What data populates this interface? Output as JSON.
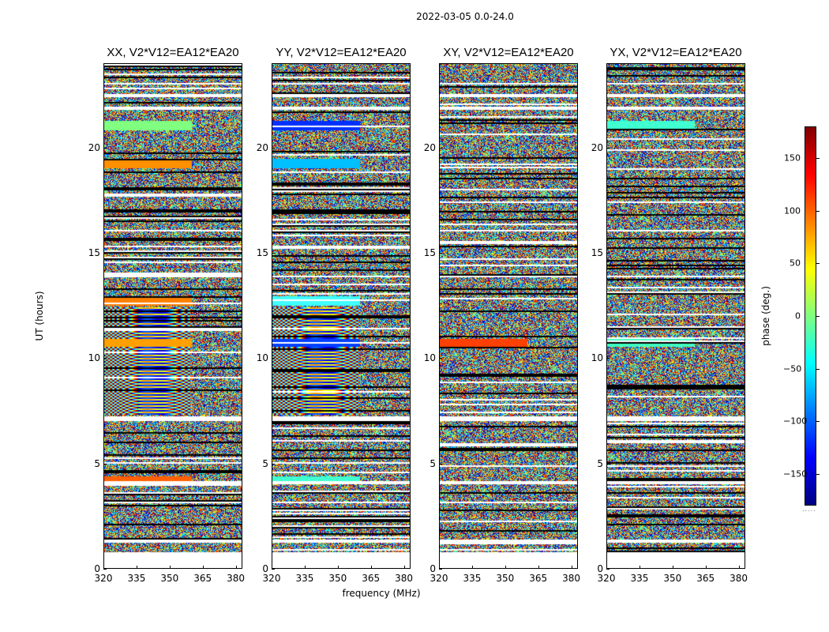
{
  "figure_title": "2022-03-05 0.0-24.0",
  "ylabel": "UT (hours)",
  "xlabel": "frequency (MHz)",
  "colorbar": {
    "label": "phase (deg.)",
    "ticks": [
      150,
      100,
      50,
      0,
      -50,
      -100,
      -150
    ],
    "tick_labels": [
      "150",
      "100",
      "50",
      "0",
      "−50",
      "−100",
      "−150"
    ],
    "range": [
      -180,
      180
    ],
    "colormap": "jet"
  },
  "chart_data": {
    "type": "heatmap",
    "xlim": [
      320,
      383
    ],
    "ylim": [
      0,
      24
    ],
    "x_ticks": [
      320,
      335,
      350,
      365,
      380
    ],
    "x_tick_labels": [
      "320",
      "335",
      "350",
      "365",
      "380"
    ],
    "y_ticks": [
      0,
      5,
      10,
      15,
      20
    ],
    "y_tick_labels": [
      "0",
      "5",
      "10",
      "15",
      "20"
    ],
    "panels": [
      {
        "title": "XX, V2*V12=EA12*EA20",
        "strong_bands": [
          {
            "t": 21.1,
            "color": "#80ff80"
          },
          {
            "t": 19.3,
            "color": "#ff9000"
          },
          {
            "t": 12.8,
            "color": "#ff8000"
          },
          {
            "t": 10.8,
            "color": "#ffa000"
          },
          {
            "t": 4.3,
            "color": "#ff6000"
          }
        ]
      },
      {
        "title": "YY, V2*V12=EA12*EA20",
        "strong_bands": [
          {
            "t": 21.1,
            "color": "#0030ff"
          },
          {
            "t": 19.3,
            "color": "#00c0ff"
          },
          {
            "t": 12.8,
            "color": "#40ffff"
          },
          {
            "t": 10.8,
            "color": "#0040ff"
          },
          {
            "t": 4.3,
            "color": "#40ffd0"
          }
        ]
      },
      {
        "title": "XY, V2*V12=EA12*EA20",
        "strong_bands": [
          {
            "t": 10.8,
            "color": "#ff4000"
          }
        ]
      },
      {
        "title": "YX, V2*V12=EA12*EA20",
        "strong_bands": [
          {
            "t": 21.1,
            "color": "#40ffd0"
          },
          {
            "t": 10.8,
            "color": "#40ffc0"
          }
        ]
      }
    ],
    "gaps_hours": [
      [
        0,
        0.85
      ],
      [
        1.35,
        1.45
      ],
      [
        4.1,
        4.2
      ],
      [
        7.1,
        7.3
      ],
      [
        13.9,
        14.0
      ],
      [
        16.1,
        16.2
      ],
      [
        21.9,
        22.0
      ],
      [
        22.5,
        22.6
      ],
      [
        23.05,
        23.1
      ]
    ]
  }
}
